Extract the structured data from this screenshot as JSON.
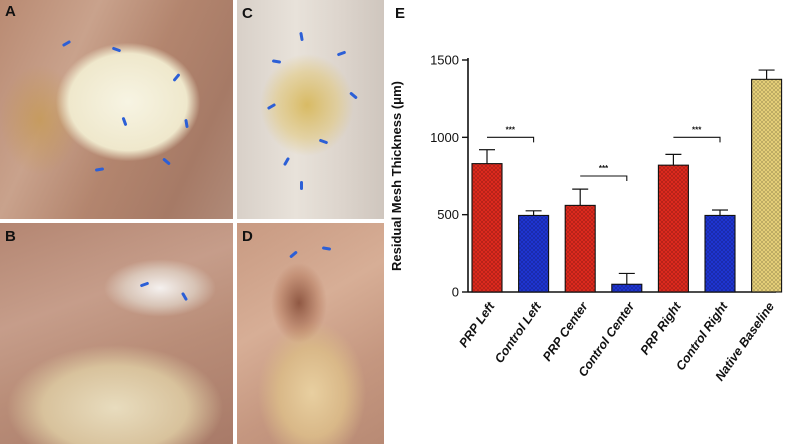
{
  "panels": {
    "a": "A",
    "b": "B",
    "c": "C",
    "d": "D",
    "e": "E"
  },
  "chart_data": {
    "type": "bar",
    "panel_label": "E",
    "ylabel": "Residual Mesh Thickness (μm)",
    "ylim": [
      0,
      1500
    ],
    "yticks": [
      0,
      500,
      1000,
      1500
    ],
    "grid": false,
    "categories": [
      "PRP Left",
      "Control Left",
      "PRP Center",
      "Control Center",
      "PRP Right",
      "Control Right",
      "Native Baseline"
    ],
    "values": [
      830,
      495,
      560,
      50,
      820,
      495,
      1375
    ],
    "errors": [
      90,
      30,
      105,
      70,
      70,
      35,
      60
    ],
    "colors": [
      "#e02a1e",
      "#1f35d4",
      "#e02a1e",
      "#1f35d4",
      "#e02a1e",
      "#1f35d4",
      "#e8d27a"
    ],
    "significance": [
      {
        "from": 0,
        "to": 1,
        "label": "***",
        "y": 1000
      },
      {
        "from": 2,
        "to": 3,
        "label": "***",
        "y": 750
      },
      {
        "from": 4,
        "to": 5,
        "label": "***",
        "y": 1000
      }
    ]
  }
}
